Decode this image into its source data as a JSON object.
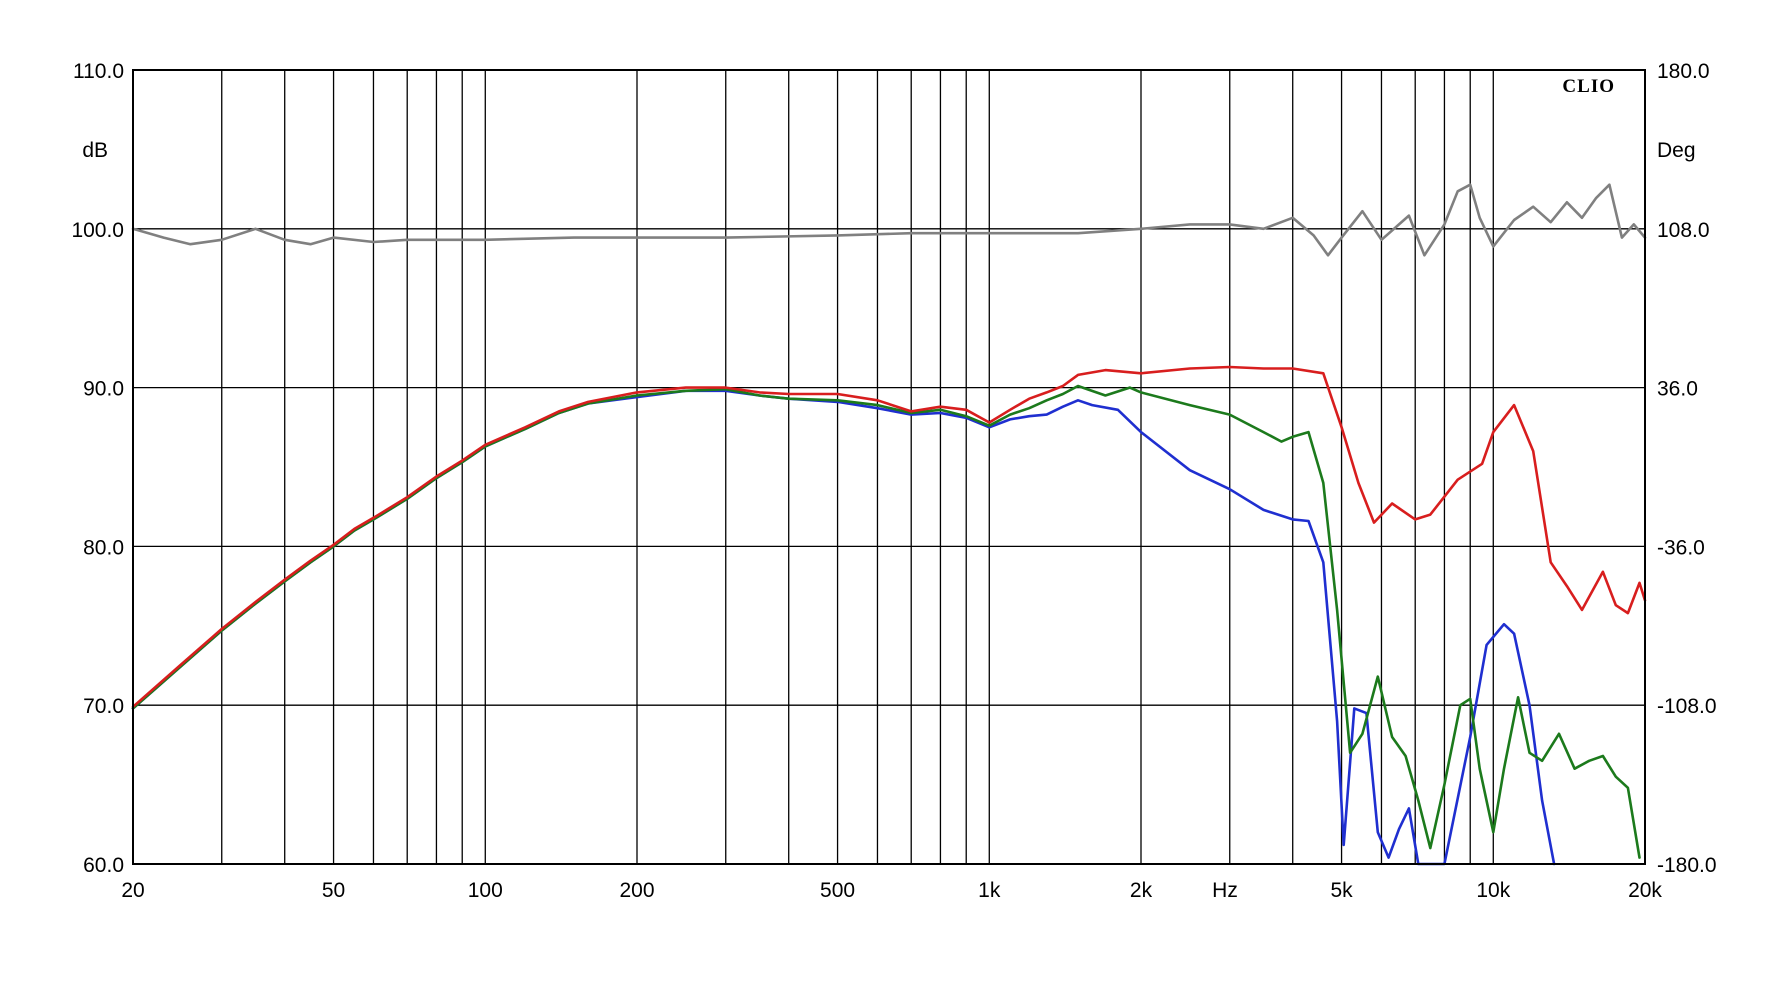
{
  "chart_data": {
    "type": "line",
    "brand": "CLIO",
    "x_scale": "log",
    "xlim": [
      20,
      20000
    ],
    "x_unit": "Hz",
    "x_tick_values": [
      20,
      50,
      100,
      200,
      500,
      1000,
      2000,
      5000,
      10000,
      20000
    ],
    "x_tick_labels": [
      "20",
      "50",
      "100",
      "200",
      "500",
      "1k",
      "2k",
      "5k",
      "10k",
      "20k"
    ],
    "y_left": {
      "unit": "dB",
      "lim": [
        60,
        110
      ],
      "ticks": [
        60,
        70,
        80,
        90,
        100,
        110
      ],
      "tick_labels": [
        "60.0",
        "70.0",
        "80.0",
        "90.0",
        "100.0",
        "110.0"
      ]
    },
    "y_right": {
      "unit": "Deg",
      "lim": [
        -180,
        180
      ],
      "tick_labels": [
        "180.0",
        "108.0",
        "36.0",
        "-36.0",
        "-108.0",
        "-180.0"
      ]
    },
    "grid": true,
    "series": [
      {
        "color": "#808080",
        "axis": "right",
        "points": [
          [
            20,
            108
          ],
          [
            23,
            104
          ],
          [
            26,
            101
          ],
          [
            30,
            103
          ],
          [
            35,
            108
          ],
          [
            40,
            103
          ],
          [
            45,
            101
          ],
          [
            50,
            104
          ],
          [
            60,
            102
          ],
          [
            70,
            103
          ],
          [
            100,
            103
          ],
          [
            150,
            104
          ],
          [
            200,
            104
          ],
          [
            300,
            104
          ],
          [
            500,
            105
          ],
          [
            700,
            106
          ],
          [
            1000,
            106
          ],
          [
            1500,
            106
          ],
          [
            2000,
            108
          ],
          [
            2500,
            110
          ],
          [
            3000,
            110
          ],
          [
            3500,
            108
          ],
          [
            4000,
            113
          ],
          [
            4400,
            105
          ],
          [
            4700,
            96
          ],
          [
            5000,
            104
          ],
          [
            5500,
            116
          ],
          [
            6000,
            103
          ],
          [
            6800,
            114
          ],
          [
            7300,
            96
          ],
          [
            8000,
            110
          ],
          [
            8500,
            125
          ],
          [
            9000,
            128
          ],
          [
            9400,
            113
          ],
          [
            10000,
            100
          ],
          [
            11000,
            112
          ],
          [
            12000,
            118
          ],
          [
            13000,
            111
          ],
          [
            14000,
            120
          ],
          [
            15000,
            113
          ],
          [
            16000,
            122
          ],
          [
            17000,
            128
          ],
          [
            18000,
            104
          ],
          [
            19000,
            110
          ],
          [
            20000,
            104
          ]
        ]
      },
      {
        "color": "#1f2fd0",
        "axis": "left",
        "points": [
          [
            20,
            69.8
          ],
          [
            25,
            72.5
          ],
          [
            30,
            74.7
          ],
          [
            35,
            76.4
          ],
          [
            40,
            77.8
          ],
          [
            45,
            79
          ],
          [
            50,
            80
          ],
          [
            55,
            81
          ],
          [
            60,
            81.7
          ],
          [
            70,
            83
          ],
          [
            80,
            84.3
          ],
          [
            90,
            85.3
          ],
          [
            100,
            86.3
          ],
          [
            120,
            87.4
          ],
          [
            140,
            88.4
          ],
          [
            160,
            89
          ],
          [
            200,
            89.4
          ],
          [
            250,
            89.8
          ],
          [
            300,
            89.8
          ],
          [
            350,
            89.5
          ],
          [
            400,
            89.3
          ],
          [
            500,
            89.1
          ],
          [
            600,
            88.7
          ],
          [
            700,
            88.3
          ],
          [
            800,
            88.4
          ],
          [
            900,
            88.1
          ],
          [
            1000,
            87.5
          ],
          [
            1100,
            88
          ],
          [
            1200,
            88.2
          ],
          [
            1300,
            88.3
          ],
          [
            1400,
            88.8
          ],
          [
            1500,
            89.2
          ],
          [
            1600,
            88.9
          ],
          [
            1800,
            88.6
          ],
          [
            2000,
            87.2
          ],
          [
            2500,
            84.8
          ],
          [
            3000,
            83.6
          ],
          [
            3500,
            82.3
          ],
          [
            4000,
            81.7
          ],
          [
            4300,
            81.6
          ],
          [
            4600,
            79
          ],
          [
            4900,
            69
          ],
          [
            5050,
            61.2
          ],
          [
            5300,
            69.8
          ],
          [
            5600,
            69.5
          ],
          [
            5900,
            62
          ],
          [
            6200,
            60.4
          ],
          [
            6500,
            62.2
          ],
          [
            6800,
            63.5
          ],
          [
            7100,
            60
          ],
          [
            8000,
            60
          ],
          [
            9000,
            68
          ],
          [
            9700,
            73.8
          ],
          [
            10500,
            75.1
          ],
          [
            11000,
            74.5
          ],
          [
            11800,
            70
          ],
          [
            12500,
            64
          ],
          [
            13200,
            60
          ]
        ]
      },
      {
        "color": "#1c7a1c",
        "axis": "left",
        "points": [
          [
            20,
            69.8
          ],
          [
            25,
            72.5
          ],
          [
            30,
            74.7
          ],
          [
            35,
            76.4
          ],
          [
            40,
            77.8
          ],
          [
            45,
            79
          ],
          [
            50,
            80
          ],
          [
            55,
            81
          ],
          [
            60,
            81.7
          ],
          [
            70,
            83
          ],
          [
            80,
            84.3
          ],
          [
            90,
            85.3
          ],
          [
            100,
            86.3
          ],
          [
            120,
            87.4
          ],
          [
            140,
            88.4
          ],
          [
            160,
            89
          ],
          [
            200,
            89.5
          ],
          [
            250,
            89.8
          ],
          [
            300,
            89.9
          ],
          [
            350,
            89.5
          ],
          [
            400,
            89.3
          ],
          [
            500,
            89.2
          ],
          [
            600,
            88.9
          ],
          [
            700,
            88.4
          ],
          [
            800,
            88.6
          ],
          [
            900,
            88.2
          ],
          [
            1000,
            87.6
          ],
          [
            1100,
            88.3
          ],
          [
            1200,
            88.7
          ],
          [
            1300,
            89.2
          ],
          [
            1400,
            89.6
          ],
          [
            1500,
            90.1
          ],
          [
            1700,
            89.5
          ],
          [
            1900,
            90
          ],
          [
            2000,
            89.7
          ],
          [
            2500,
            88.9
          ],
          [
            3000,
            88.3
          ],
          [
            3500,
            87.2
          ],
          [
            3800,
            86.6
          ],
          [
            4000,
            86.9
          ],
          [
            4300,
            87.2
          ],
          [
            4600,
            84
          ],
          [
            4900,
            76
          ],
          [
            5200,
            67
          ],
          [
            5500,
            68.2
          ],
          [
            5900,
            71.8
          ],
          [
            6300,
            68
          ],
          [
            6700,
            66.8
          ],
          [
            7100,
            64
          ],
          [
            7500,
            61
          ],
          [
            8000,
            65
          ],
          [
            8600,
            70
          ],
          [
            9000,
            70.4
          ],
          [
            9400,
            66
          ],
          [
            10000,
            62
          ],
          [
            10500,
            66
          ],
          [
            11200,
            70.5
          ],
          [
            11800,
            67
          ],
          [
            12500,
            66.5
          ],
          [
            13500,
            68.2
          ],
          [
            14500,
            66
          ],
          [
            15500,
            66.5
          ],
          [
            16500,
            66.8
          ],
          [
            17500,
            65.5
          ],
          [
            18500,
            64.8
          ],
          [
            19500,
            60.4
          ]
        ]
      },
      {
        "color": "#d81e1e",
        "axis": "left",
        "points": [
          [
            20,
            69.9
          ],
          [
            25,
            72.6
          ],
          [
            30,
            74.8
          ],
          [
            35,
            76.5
          ],
          [
            40,
            77.9
          ],
          [
            45,
            79.1
          ],
          [
            50,
            80.1
          ],
          [
            55,
            81.1
          ],
          [
            60,
            81.8
          ],
          [
            70,
            83.1
          ],
          [
            80,
            84.4
          ],
          [
            90,
            85.4
          ],
          [
            100,
            86.4
          ],
          [
            120,
            87.5
          ],
          [
            140,
            88.5
          ],
          [
            160,
            89.1
          ],
          [
            200,
            89.7
          ],
          [
            250,
            90
          ],
          [
            300,
            90
          ],
          [
            350,
            89.7
          ],
          [
            400,
            89.6
          ],
          [
            500,
            89.6
          ],
          [
            600,
            89.2
          ],
          [
            700,
            88.5
          ],
          [
            800,
            88.8
          ],
          [
            900,
            88.6
          ],
          [
            1000,
            87.8
          ],
          [
            1100,
            88.6
          ],
          [
            1200,
            89.3
          ],
          [
            1300,
            89.7
          ],
          [
            1400,
            90.1
          ],
          [
            1500,
            90.8
          ],
          [
            1700,
            91.1
          ],
          [
            2000,
            90.9
          ],
          [
            2500,
            91.2
          ],
          [
            3000,
            91.3
          ],
          [
            3500,
            91.2
          ],
          [
            4000,
            91.2
          ],
          [
            4600,
            90.9
          ],
          [
            5000,
            87.5
          ],
          [
            5400,
            84
          ],
          [
            5800,
            81.5
          ],
          [
            6300,
            82.7
          ],
          [
            7000,
            81.7
          ],
          [
            7500,
            82
          ],
          [
            8500,
            84.2
          ],
          [
            9500,
            85.2
          ],
          [
            10000,
            87.2
          ],
          [
            11000,
            88.9
          ],
          [
            12000,
            86
          ],
          [
            13000,
            79
          ],
          [
            14000,
            77.5
          ],
          [
            15000,
            76
          ],
          [
            16500,
            78.4
          ],
          [
            17500,
            76.3
          ],
          [
            18500,
            75.8
          ],
          [
            19500,
            77.7
          ],
          [
            20000,
            76.6
          ]
        ]
      }
    ]
  }
}
